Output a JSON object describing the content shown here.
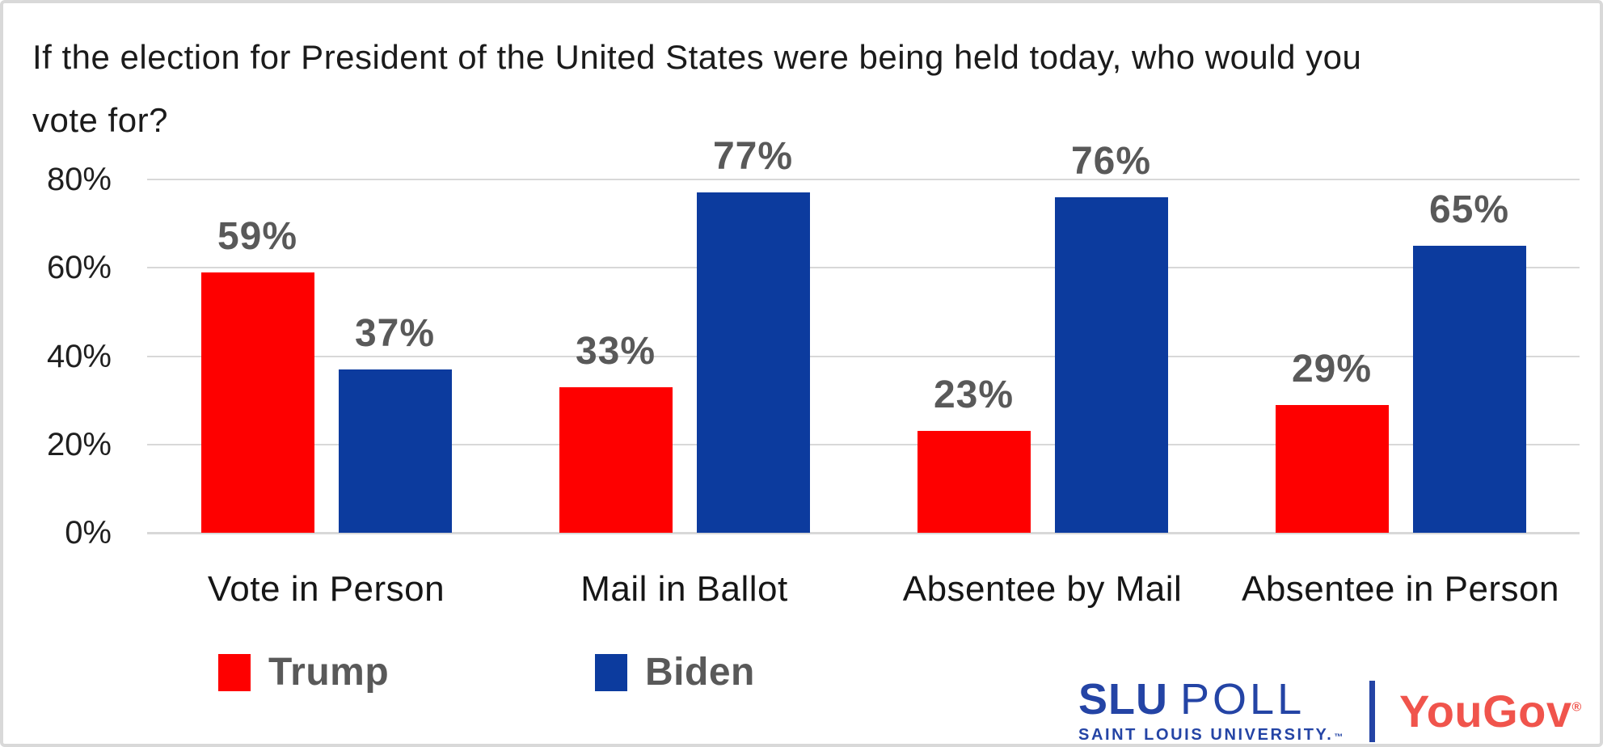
{
  "title_display": "If the election for President of the United States were being held today, who would you\nvote for?",
  "chart_data": {
    "type": "bar",
    "title": "If the election for President of the United States were being held today, who would you vote for?",
    "categories": [
      "Vote in Person",
      "Mail in Ballot",
      "Absentee by Mail",
      "Absentee in Person"
    ],
    "series": [
      {
        "name": "Trump",
        "color": "#fe0000",
        "values": [
          59,
          33,
          23,
          29
        ]
      },
      {
        "name": "Biden",
        "color": "#0c3b9e",
        "values": [
          37,
          77,
          76,
          65
        ]
      }
    ],
    "value_suffix": "%",
    "y_ticks": [
      80,
      60,
      40,
      20,
      0
    ],
    "y_tick_labels": [
      "80%",
      "60%",
      "40%",
      "20%",
      "0%"
    ],
    "ylim": [
      0,
      80
    ],
    "grid": true,
    "gridline_color": "#d8d8d8",
    "data_label_color": "#595959",
    "legend_position": "bottom-left"
  },
  "legend": {
    "items": [
      {
        "label": "Trump",
        "color": "#fe0000"
      },
      {
        "label": "Biden",
        "color": "#0c3b9e"
      }
    ]
  },
  "branding": {
    "slu_bold": "SLU",
    "slu_light": "POLL",
    "slu_sub": "SAINT LOUIS UNIVERSITY.",
    "slu_tm": "™",
    "slu_color": "#2444a5",
    "yougov": "YouGov",
    "yougov_reg": "®",
    "yougov_color": "#f0544c"
  }
}
